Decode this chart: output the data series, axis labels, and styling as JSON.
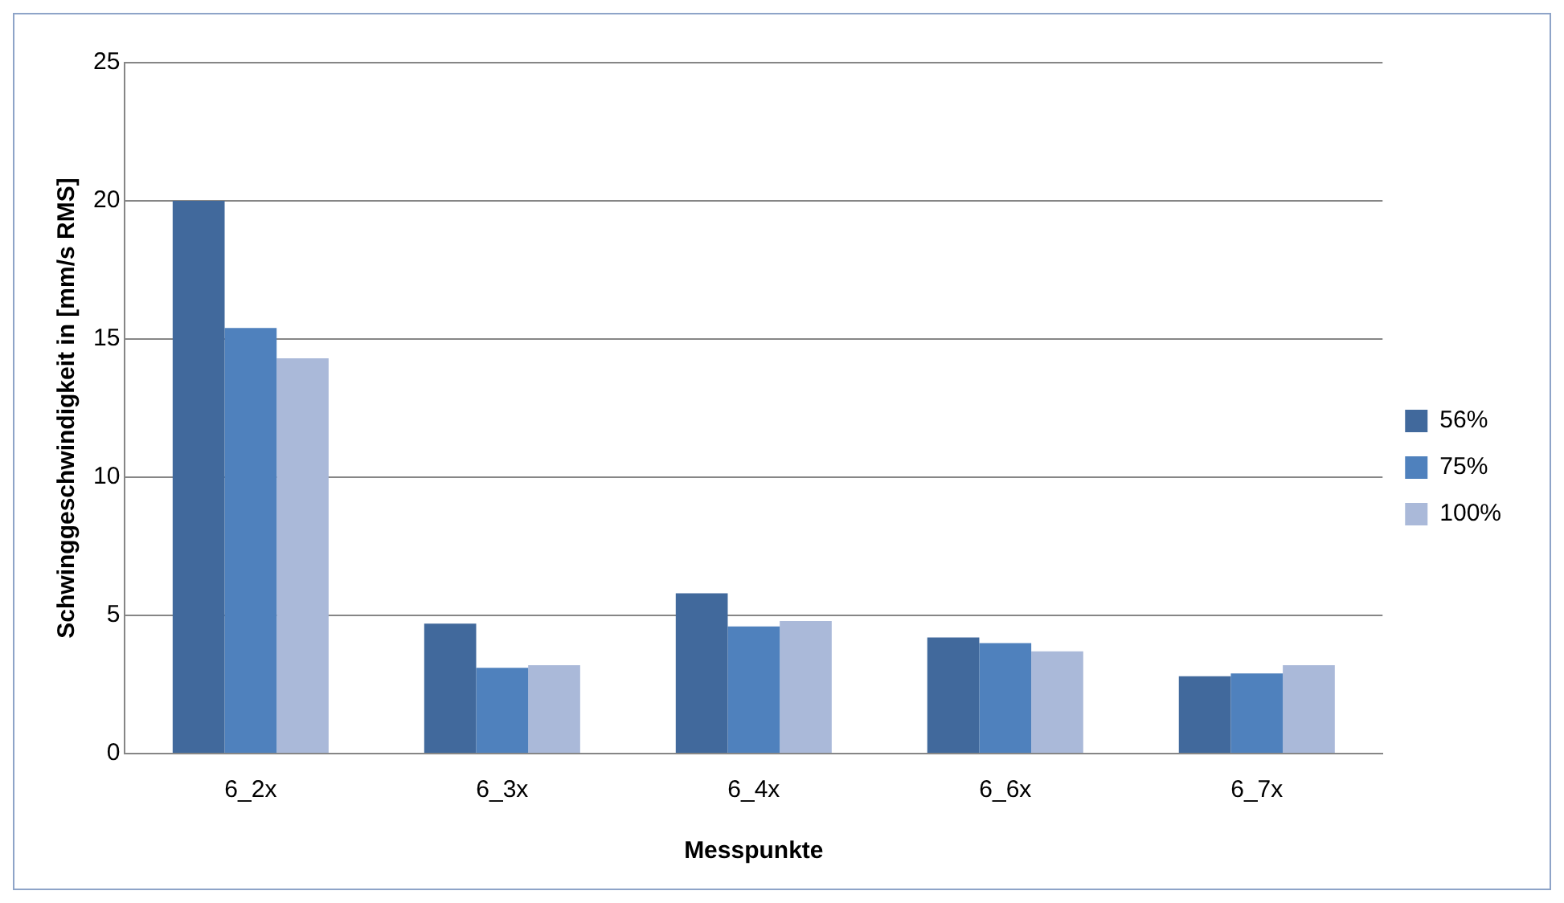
{
  "chart_data": {
    "type": "bar",
    "xlabel": "Messpunkte",
    "ylabel": "Schwinggeschwindigkeit in [mm/s RMS]",
    "categories": [
      "6_2x",
      "6_3x",
      "6_4x",
      "6_6x",
      "6_7x"
    ],
    "series": [
      {
        "name": "56%",
        "color": "#41699c",
        "values": [
          20,
          4.7,
          5.8,
          4.2,
          2.8
        ]
      },
      {
        "name": "75%",
        "color": "#4f81bd",
        "values": [
          15.4,
          3.1,
          4.6,
          4.0,
          2.9
        ]
      },
      {
        "name": "100%",
        "color": "#aab9d9",
        "values": [
          14.3,
          3.2,
          4.8,
          3.7,
          3.2
        ]
      }
    ],
    "ylim": [
      0,
      25
    ],
    "yticks": [
      0,
      5,
      10,
      15,
      20,
      25
    ],
    "grid": "y",
    "legend": "right"
  }
}
